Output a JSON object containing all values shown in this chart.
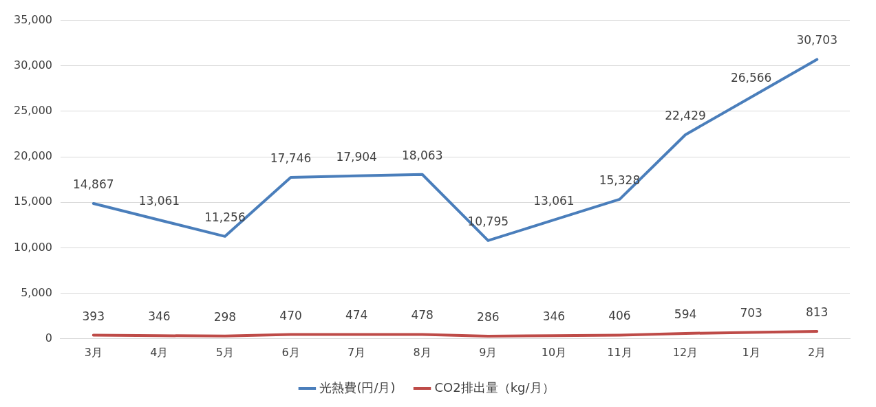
{
  "chart_data": {
    "type": "line",
    "categories": [
      "3月",
      "4月",
      "5月",
      "6月",
      "7月",
      "8月",
      "9月",
      "10月",
      "11月",
      "12月",
      "1月",
      "2月"
    ],
    "series": [
      {
        "name": "光熱費(円/月)",
        "color": "#4a7ebb",
        "values": [
          14867,
          13061,
          11256,
          17746,
          17904,
          18063,
          10795,
          13061,
          15328,
          22429,
          26566,
          30703
        ],
        "value_labels": [
          "14,867",
          "13,061",
          "11,256",
          "17,746",
          "17,904",
          "18,063",
          "10,795",
          "13,061",
          "15,328",
          "22,429",
          "26,566",
          "30,703"
        ]
      },
      {
        "name": "CO2排出量（kg/月）",
        "color": "#be4b48",
        "values": [
          393,
          346,
          298,
          470,
          474,
          478,
          286,
          346,
          406,
          594,
          703,
          813
        ],
        "value_labels": [
          "393",
          "346",
          "298",
          "470",
          "474",
          "478",
          "286",
          "346",
          "406",
          "594",
          "703",
          "813"
        ]
      }
    ],
    "ylim": [
      0,
      35000
    ],
    "yticks": [
      {
        "value": 0,
        "label": "0"
      },
      {
        "value": 5000,
        "label": "5,000"
      },
      {
        "value": 10000,
        "label": "10,000"
      },
      {
        "value": 15000,
        "label": "15,000"
      },
      {
        "value": 20000,
        "label": "20,000"
      },
      {
        "value": 25000,
        "label": "25,000"
      },
      {
        "value": 30000,
        "label": "30,000"
      },
      {
        "value": 35000,
        "label": "35,000"
      }
    ],
    "grid": "y",
    "legend": "bottom",
    "marker": "none",
    "line_style": "solid"
  }
}
